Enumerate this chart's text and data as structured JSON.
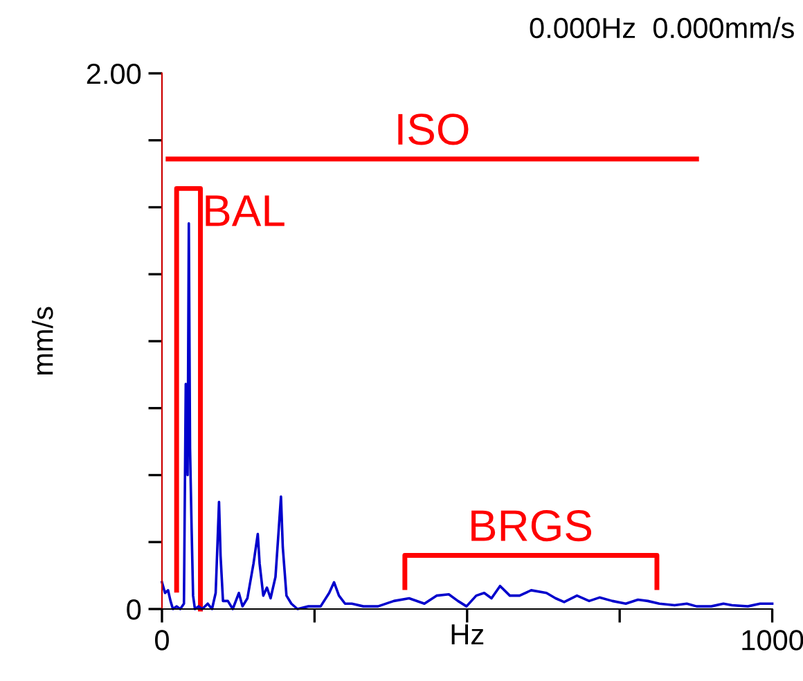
{
  "chart_data": {
    "type": "line",
    "xlabel": "Hz",
    "ylabel": "mm/s",
    "annotations": [
      "0.000Hz  0.000mm/s",
      {
        "text": "ISO",
        "x": 443,
        "y": 1.68
      },
      {
        "text": "BAL",
        "x": 63,
        "y": 1.57
      },
      {
        "text": "BRGS",
        "x": 604,
        "y": 0.2
      }
    ],
    "xlim": [
      0,
      1000
    ],
    "xticks": [
      0,
      {
        "value": 250,
        "label": null
      },
      {
        "value": 500,
        "label": null
      },
      {
        "value": 750,
        "label": null
      },
      1000
    ],
    "ylim": [
      0,
      2.0
    ],
    "yticks": [
      0,
      {
        "value": 0.25,
        "label": null
      },
      {
        "value": 0.5,
        "label": null
      },
      {
        "value": 0.75,
        "label": null
      },
      {
        "value": 1.0,
        "label": null
      },
      {
        "value": 1.25,
        "label": null
      },
      {
        "value": 1.5,
        "label": null
      },
      {
        "value": 1.75,
        "label": null
      },
      {
        "value": 2.0,
        "label": "2.00"
      }
    ],
    "grid": false,
    "legend": false,
    "marker": "none",
    "line_style": "solid",
    "series": [
      {
        "color": "#ff0000",
        "x": [
          10,
          876
        ],
        "values": [
          1.68,
          1.68
        ]
      },
      {
        "color": "#ff0000",
        "x": [
          24,
          24,
          63,
          63
        ],
        "values": [
          0.07,
          1.57,
          1.57,
          0
        ]
      },
      {
        "color": "#ff0000",
        "x": [
          398,
          398,
          811,
          811
        ],
        "values": [
          0.08,
          0.2,
          0.2,
          0.08
        ]
      },
      {
        "color": "#0000cc",
        "x": [
          0,
          5,
          10,
          14,
          18,
          24,
          30,
          36,
          39,
          42,
          44,
          46,
          48.5,
          51,
          54,
          60,
          66,
          75,
          82,
          88,
          93.5,
          96,
          100,
          108,
          116,
          126,
          132,
          140,
          150,
          157,
          160,
          166,
          172,
          178,
          186,
          195,
          198,
          204,
          212,
          222,
          240,
          260,
          274,
          282,
          290,
          300,
          311,
          330,
          354,
          380,
          405,
          430,
          450,
          470,
          485,
          499,
          515,
          528,
          540,
          554,
          570,
          586,
          605,
          630,
          645,
          659,
          680,
          700,
          717,
          738,
          760,
          780,
          796,
          815,
          840,
          860,
          876,
          900,
          920,
          934,
          960,
          980,
          1000
        ],
        "values": [
          0.1,
          0.06,
          0.07,
          0.03,
          0.0,
          0.01,
          0.0,
          0.02,
          0.84,
          0.5,
          1.44,
          0.6,
          0.31,
          0.05,
          0.0,
          0.01,
          0.0,
          0.02,
          0.0,
          0.06,
          0.4,
          0.2,
          0.03,
          0.03,
          0.0,
          0.06,
          0.01,
          0.04,
          0.17,
          0.28,
          0.17,
          0.05,
          0.08,
          0.04,
          0.12,
          0.42,
          0.23,
          0.05,
          0.02,
          0.0,
          0.01,
          0.01,
          0.06,
          0.1,
          0.05,
          0.02,
          0.02,
          0.01,
          0.01,
          0.03,
          0.04,
          0.02,
          0.05,
          0.055,
          0.03,
          0.01,
          0.05,
          0.06,
          0.04,
          0.086,
          0.05,
          0.05,
          0.07,
          0.06,
          0.04,
          0.026,
          0.05,
          0.03,
          0.043,
          0.03,
          0.02,
          0.035,
          0.03,
          0.02,
          0.014,
          0.02,
          0.01,
          0.01,
          0.02,
          0.014,
          0.01,
          0.02,
          0.02
        ]
      }
    ]
  }
}
